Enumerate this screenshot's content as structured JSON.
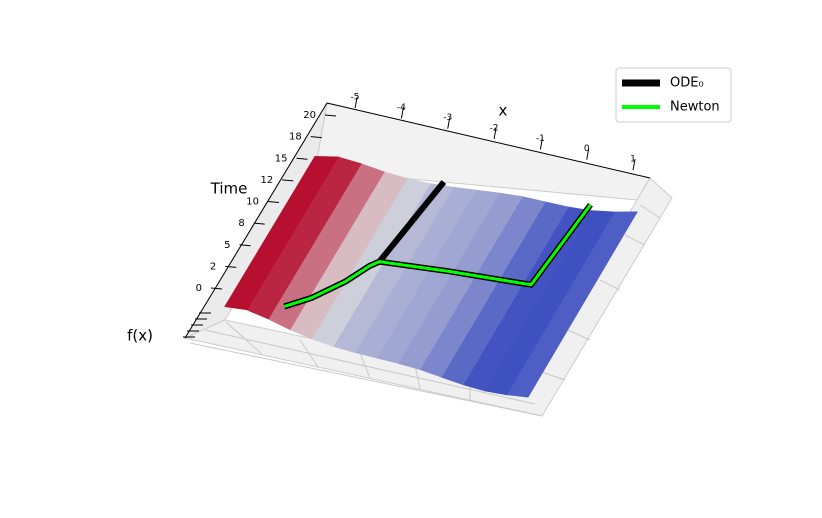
{
  "chart_data": {
    "type": "surface3d",
    "xlabel": "x",
    "ylabel": "Time",
    "zlabel": "f(x)",
    "xlim": [
      -5.5,
      1.5
    ],
    "ylim": [
      -1,
      20
    ],
    "zlim": [
      -1,
      1
    ],
    "xticks": [
      -5,
      -4,
      -3,
      -2,
      -1,
      0,
      1
    ],
    "yticks": [
      0,
      {
        "value": 2.5,
        "label": "2"
      },
      5,
      {
        "value": 7.5,
        "label": "8"
      },
      10,
      {
        "value": 12.5,
        "label": "12"
      },
      15,
      {
        "value": 17.5,
        "label": "18"
      },
      20
    ],
    "surface": {
      "x": [
        -5.5,
        -5,
        -4.5,
        -4,
        -3.5,
        -3,
        -2.5,
        -2,
        -1.5,
        -1,
        -0.5,
        0,
        0.5,
        1,
        1.5
      ],
      "f": [
        0.9,
        1.0,
        0.7,
        0.3,
        0.0,
        -0.2,
        -0.3,
        -0.35,
        -0.4,
        -0.5,
        -0.7,
        -0.9,
        -1.0,
        -0.95,
        -0.8
      ]
    },
    "series": [
      {
        "name": "ODE₀",
        "color": "#000000",
        "x": [
          -4.45,
          -4.0,
          -3.5,
          -3.2,
          -3.05,
          -2.7
        ],
        "t": [
          2.15,
          3.8,
          6.5,
          8.8,
          9.5,
          20
        ]
      },
      {
        "name": "Newton",
        "color": "#00ff00",
        "x": [
          -4.45,
          -4.0,
          -3.5,
          -3.2,
          -3.05,
          -1.5,
          0.1,
          0.35,
          0.6
        ],
        "t": [
          2.15,
          3.8,
          6.5,
          8.8,
          9.5,
          9.6,
          9.5,
          9.5,
          19
        ]
      }
    ],
    "legend": "upper right"
  }
}
